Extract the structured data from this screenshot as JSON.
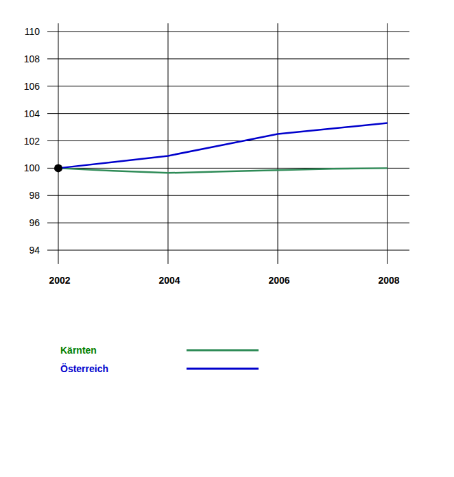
{
  "chart_data": {
    "type": "line",
    "x": [
      2002,
      2003,
      2004,
      2005,
      2006,
      2007,
      2008
    ],
    "series": [
      {
        "name": "Kärnten",
        "color": "#2e8b57",
        "values": [
          100,
          99.8,
          99.65,
          99.75,
          99.85,
          99.95,
          100.0
        ]
      },
      {
        "name": "Österreich",
        "color": "#0000cc",
        "values": [
          100,
          100.45,
          100.9,
          101.7,
          102.5,
          102.9,
          103.3
        ]
      }
    ],
    "xlim": [
      2001.8,
      2008.4
    ],
    "xticks": [
      2002,
      2004,
      2006,
      2008
    ],
    "ylim": [
      93,
      110.6
    ],
    "yticks": [
      94,
      96,
      98,
      100,
      102,
      104,
      106,
      108,
      110
    ],
    "grid": true,
    "legend": "bottom-left"
  }
}
